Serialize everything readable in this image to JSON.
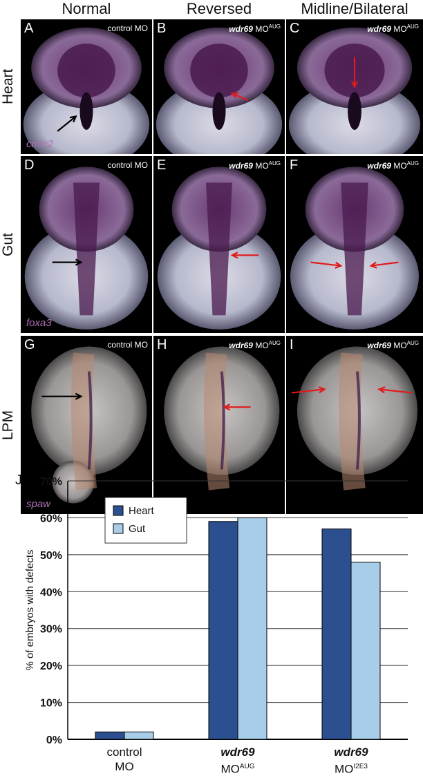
{
  "columns": [
    "Normal",
    "Reversed",
    "Midline/Bilateral"
  ],
  "rows": [
    "Heart",
    "Gut",
    "LPM"
  ],
  "panels": [
    {
      "label": "A",
      "mo": "control MO",
      "gene": "cmlc2"
    },
    {
      "label": "B",
      "mo_gene": "wdr69",
      "mo": "MO",
      "mo_sup": "AUG"
    },
    {
      "label": "C",
      "mo_gene": "wdr69",
      "mo": "MO",
      "mo_sup": "AUG"
    },
    {
      "label": "D",
      "mo": "control MO",
      "gene": "foxa3"
    },
    {
      "label": "E",
      "mo_gene": "wdr69",
      "mo": "MO",
      "mo_sup": "AUG"
    },
    {
      "label": "F",
      "mo_gene": "wdr69",
      "mo": "MO",
      "mo_sup": "AUG"
    },
    {
      "label": "G",
      "mo": "control MO",
      "gene": "spaw"
    },
    {
      "label": "H",
      "mo_gene": "wdr69",
      "mo": "MO",
      "mo_sup": "AUG"
    },
    {
      "label": "I",
      "mo_gene": "wdr69",
      "mo": "MO",
      "mo_sup": "AUG"
    }
  ],
  "colors": {
    "heart": "#2c4f8f",
    "gut": "#a8cde9",
    "arrow_red": "#e01a1a",
    "arrow_black": "#000000"
  },
  "chart_label": "J",
  "chart_data": {
    "type": "bar",
    "categories": [
      "control MO",
      "wdr69 MOAUG",
      "wdr69 MOI2E3"
    ],
    "category_lines": [
      {
        "line1": "control",
        "line2": "MO",
        "line2_sup": ""
      },
      {
        "line1": "wdr69",
        "line2": "MO",
        "line2_sup": "AUG"
      },
      {
        "line1": "wdr69",
        "line2": "MO",
        "line2_sup": "I2E3"
      }
    ],
    "series": [
      {
        "name": "Heart",
        "values": [
          0.02,
          0.59,
          0.57
        ]
      },
      {
        "name": "Gut",
        "values": [
          0.02,
          0.6,
          0.48
        ]
      }
    ],
    "ylabel": "% of embryos with defects",
    "ylim": [
      0,
      0.7
    ],
    "yticks": [
      "0%",
      "10%",
      "20%",
      "30%",
      "40%",
      "50%",
      "60%",
      "70%"
    ],
    "grid": true,
    "legend": "top-left"
  }
}
